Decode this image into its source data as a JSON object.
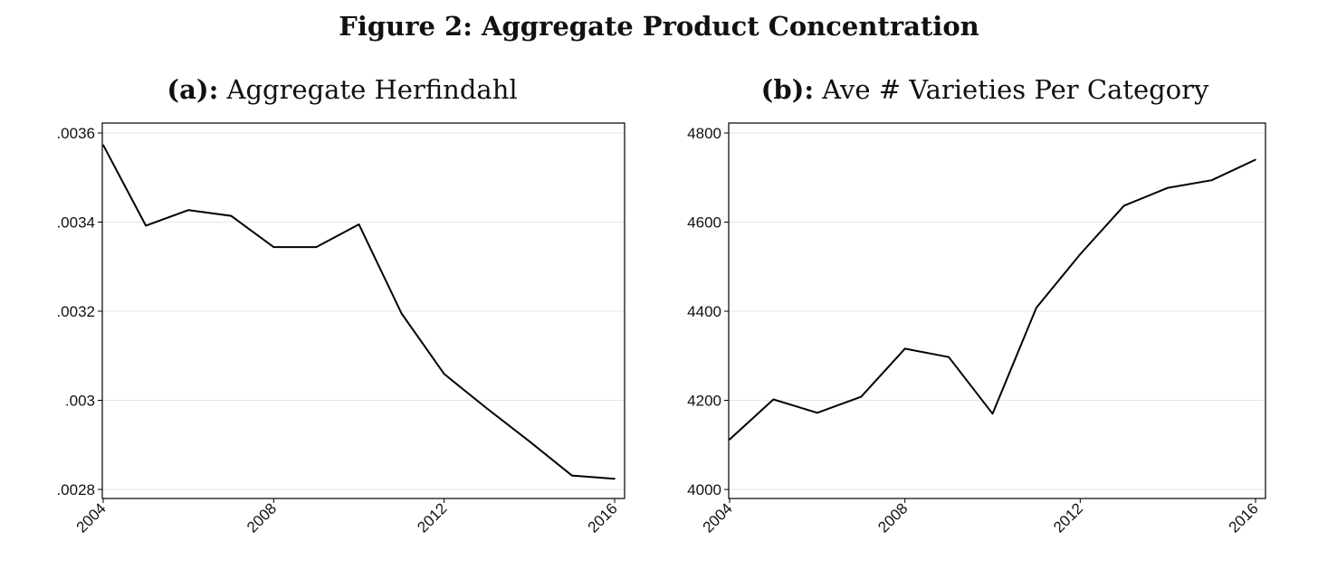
{
  "figure": {
    "title": "Figure 2: Aggregate Product Concentration"
  },
  "chart_data": [
    {
      "type": "line",
      "label": "(a):",
      "title": "Aggregate Herfindahl",
      "x": [
        2004,
        2005,
        2006,
        2007,
        2008,
        2009,
        2010,
        2011,
        2012,
        2013,
        2014,
        2015,
        2016
      ],
      "series": [
        {
          "values": [
            0.003573,
            0.003392,
            0.003427,
            0.003414,
            0.003344,
            0.003344,
            0.003395,
            0.003195,
            0.003059,
            0.002982,
            0.002908,
            0.002831,
            0.002824
          ]
        }
      ],
      "xticks": [
        2004,
        2008,
        2012,
        2016
      ],
      "xtick_labels": [
        "2004",
        "2008",
        "2012",
        "2016"
      ],
      "yticks": [
        0.0028,
        0.003,
        0.0032,
        0.0034,
        0.0036
      ],
      "ytick_labels": [
        ".0028",
        ".003",
        ".0032",
        ".0034",
        ".0036"
      ],
      "xlim": [
        2004,
        2016
      ],
      "ylim": [
        0.0028,
        0.0036
      ],
      "grid": true,
      "line_color": "#000000",
      "grid_color": "#e6e6e6"
    },
    {
      "type": "line",
      "label": "(b):",
      "title": "Ave # Varieties Per Category",
      "x": [
        2004,
        2005,
        2006,
        2007,
        2008,
        2009,
        2010,
        2011,
        2012,
        2013,
        2014,
        2015,
        2016
      ],
      "series": [
        {
          "values": [
            4112,
            4202,
            4172,
            4208,
            4316,
            4297,
            4170,
            4408,
            4528,
            4637,
            4677,
            4694,
            4740
          ]
        }
      ],
      "xticks": [
        2004,
        2008,
        2012,
        2016
      ],
      "xtick_labels": [
        "2004",
        "2008",
        "2012",
        "2016"
      ],
      "yticks": [
        4000,
        4200,
        4400,
        4600,
        4800
      ],
      "ytick_labels": [
        "4000",
        "4200",
        "4400",
        "4600",
        "4800"
      ],
      "xlim": [
        2004,
        2016
      ],
      "ylim": [
        4000,
        4800
      ],
      "grid": true,
      "line_color": "#000000",
      "grid_color": "#e6e6e6"
    }
  ]
}
